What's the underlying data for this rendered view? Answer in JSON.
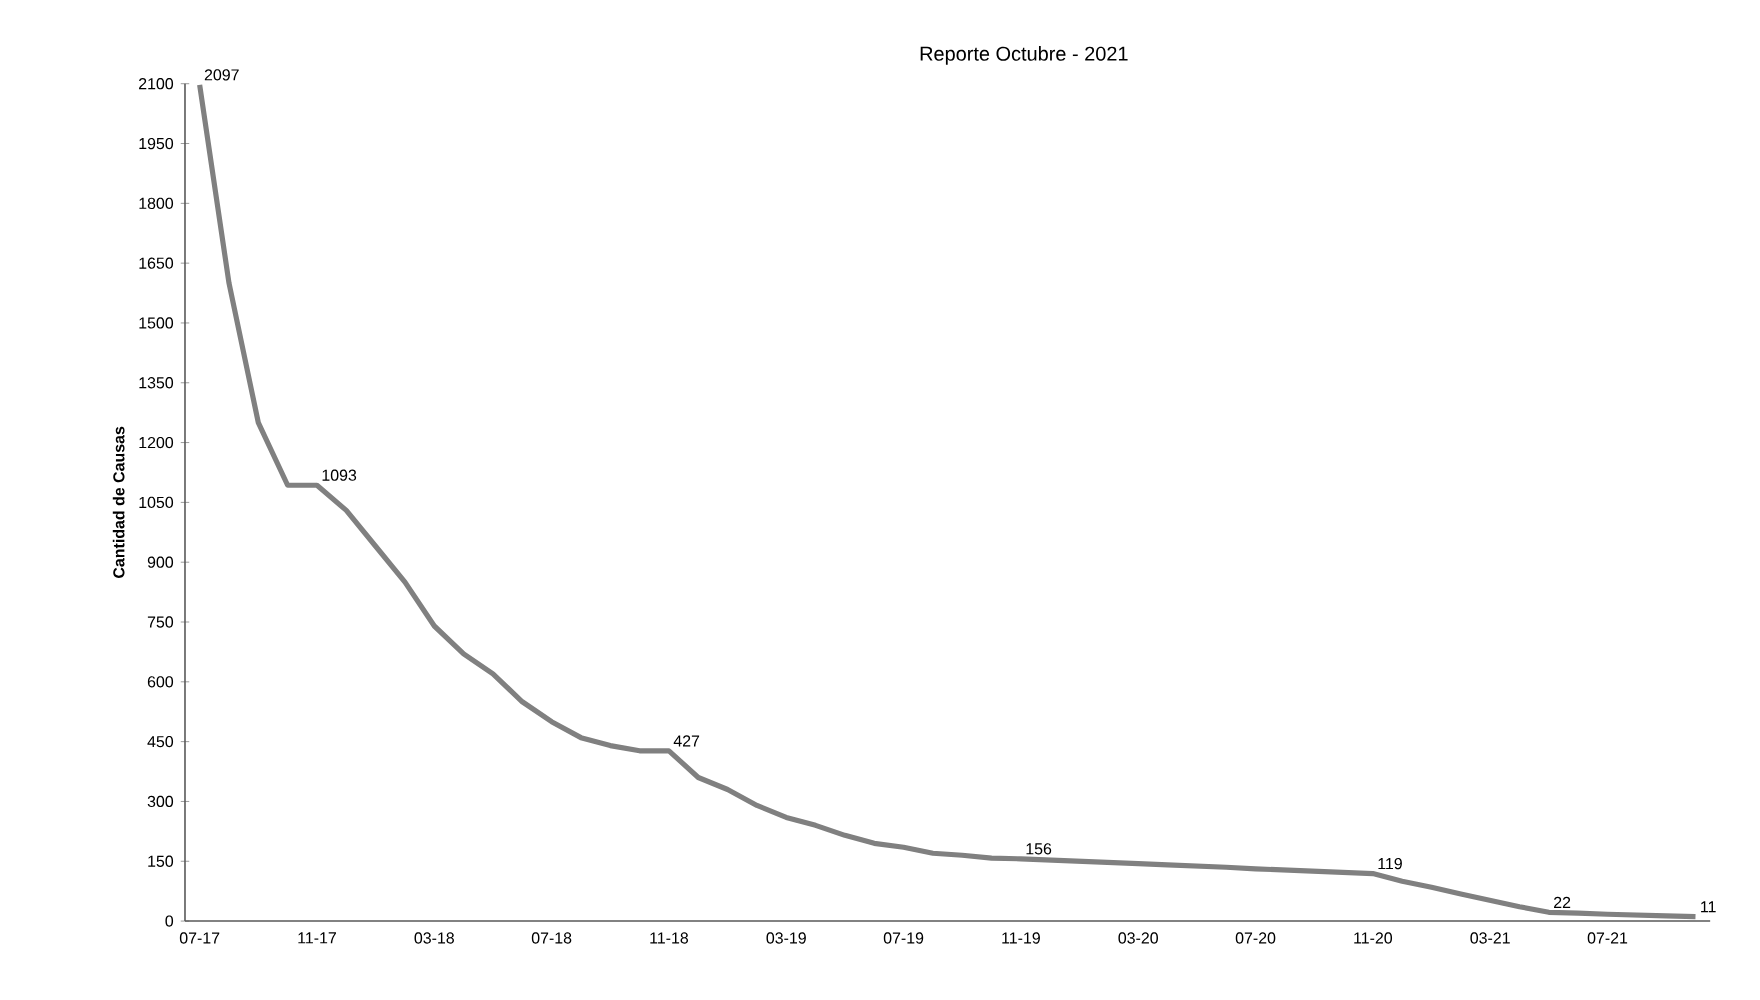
{
  "chart_data": {
    "type": "line",
    "title": "Reporte Octubre - 2021",
    "ylabel": "Cantidad de Causas",
    "categories": [
      "07-17",
      null,
      null,
      null,
      "11-17",
      null,
      null,
      null,
      "03-18",
      null,
      null,
      null,
      "07-18",
      null,
      null,
      null,
      "11-18",
      null,
      null,
      null,
      "03-19",
      null,
      null,
      null,
      "07-19",
      null,
      null,
      null,
      "11-19",
      null,
      null,
      null,
      "03-20",
      null,
      null,
      null,
      "07-20",
      null,
      null,
      null,
      "11-20",
      null,
      null,
      null,
      "03-21",
      null,
      null,
      null,
      "07-21",
      null,
      null,
      null
    ],
    "series": [
      {
        "color": "#808080",
        "values": [
          2097,
          1600,
          1250,
          1093,
          1093,
          1030,
          940,
          850,
          740,
          670,
          620,
          550,
          500,
          460,
          440,
          427,
          427,
          360,
          330,
          290,
          260,
          240,
          215,
          195,
          185,
          170,
          165,
          158,
          156,
          153,
          150,
          147,
          144,
          141,
          138,
          135,
          131,
          128,
          125,
          122,
          119,
          100,
          85,
          68,
          52,
          36,
          22,
          20,
          17,
          15,
          13,
          11
        ],
        "value_labels": [
          "2097",
          null,
          null,
          null,
          "1093",
          null,
          null,
          null,
          null,
          null,
          null,
          null,
          null,
          null,
          null,
          null,
          "427",
          null,
          null,
          null,
          null,
          null,
          null,
          null,
          null,
          null,
          null,
          null,
          "156",
          null,
          null,
          null,
          null,
          null,
          null,
          null,
          null,
          null,
          null,
          null,
          "119",
          null,
          null,
          null,
          null,
          null,
          "22",
          null,
          null,
          null,
          null,
          "11"
        ]
      }
    ],
    "ylim": [
      0,
      2100
    ],
    "yticks": [
      0,
      150,
      300,
      450,
      600,
      750,
      900,
      1050,
      1200,
      1350,
      1500,
      1650,
      1800,
      1950,
      2100
    ],
    "grid": false,
    "marker": "none",
    "line_style": "solid"
  }
}
